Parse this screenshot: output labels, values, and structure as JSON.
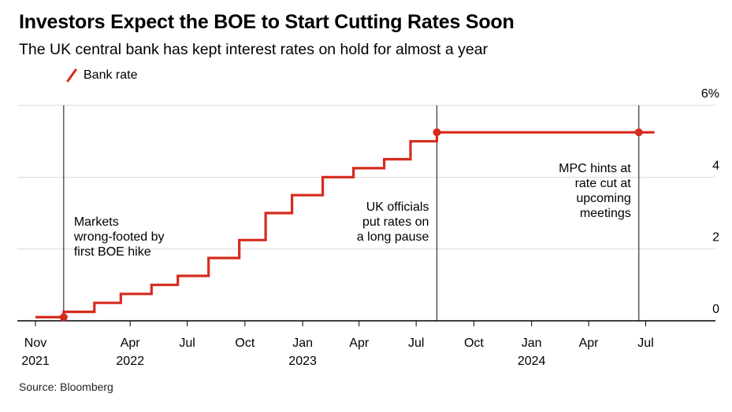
{
  "header": {
    "title": "Investors Expect the BOE to Start Cutting Rates Soon",
    "subtitle": "The UK central bank has kept interest rates on hold for almost a year"
  },
  "source": "Source: Bloomberg",
  "colors": {
    "series": "#d62b1f",
    "grid": "#d9d9d9",
    "axis": "#000000",
    "annotation_line": "#333333"
  },
  "chart_data": {
    "type": "line",
    "step": true,
    "x_unit": "date",
    "ylim": [
      0,
      6
    ],
    "y_ticks": [
      {
        "value": 0,
        "label": "0"
      },
      {
        "value": 2,
        "label": "2"
      },
      {
        "value": 4,
        "label": "4"
      },
      {
        "value": 6,
        "label": "6%"
      }
    ],
    "y_axis_position": "right",
    "xlim": [
      "2021-11-01",
      "2024-09-15"
    ],
    "x_ticks": [
      {
        "date": "2021-11-01",
        "label": "Nov",
        "year": "2021"
      },
      {
        "date": "2022-04-01",
        "label": "Apr",
        "year": "2022"
      },
      {
        "date": "2022-07-01",
        "label": "Jul",
        "year": ""
      },
      {
        "date": "2022-10-01",
        "label": "Oct",
        "year": ""
      },
      {
        "date": "2023-01-01",
        "label": "Jan",
        "year": "2023"
      },
      {
        "date": "2023-04-01",
        "label": "Apr",
        "year": ""
      },
      {
        "date": "2023-07-01",
        "label": "Jul",
        "year": ""
      },
      {
        "date": "2023-10-01",
        "label": "Oct",
        "year": ""
      },
      {
        "date": "2024-01-01",
        "label": "Jan",
        "year": "2024"
      },
      {
        "date": "2024-04-01",
        "label": "Apr",
        "year": ""
      },
      {
        "date": "2024-07-01",
        "label": "Jul",
        "year": ""
      }
    ],
    "grid": true,
    "legend": [
      {
        "name": "Bank rate",
        "color": "#d62b1f",
        "placement": "top-left"
      }
    ],
    "series": [
      {
        "name": "Bank rate",
        "color": "#d62b1f",
        "points": [
          {
            "date": "2021-11-01",
            "value": 0.1
          },
          {
            "date": "2021-12-16",
            "value": 0.25
          },
          {
            "date": "2022-02-03",
            "value": 0.5
          },
          {
            "date": "2022-03-17",
            "value": 0.75
          },
          {
            "date": "2022-05-05",
            "value": 1.0
          },
          {
            "date": "2022-06-16",
            "value": 1.25
          },
          {
            "date": "2022-08-04",
            "value": 1.75
          },
          {
            "date": "2022-09-22",
            "value": 2.25
          },
          {
            "date": "2022-11-03",
            "value": 3.0
          },
          {
            "date": "2022-12-15",
            "value": 3.5
          },
          {
            "date": "2023-02-02",
            "value": 4.0
          },
          {
            "date": "2023-03-23",
            "value": 4.25
          },
          {
            "date": "2023-05-11",
            "value": 4.5
          },
          {
            "date": "2023-06-22",
            "value": 5.0
          },
          {
            "date": "2023-08-03",
            "value": 5.25
          },
          {
            "date": "2024-07-15",
            "value": 5.25
          }
        ]
      }
    ],
    "markers": [
      {
        "date": "2021-12-16",
        "value": 0.1
      },
      {
        "date": "2023-08-03",
        "value": 5.25
      },
      {
        "date": "2024-06-20",
        "value": 5.25
      }
    ],
    "annotations": [
      {
        "date": "2021-12-16",
        "anchor": "start",
        "lines": [
          "Markets",
          "wrong-footed by",
          "first BOE hike"
        ]
      },
      {
        "date": "2023-08-03",
        "anchor": "end",
        "lines": [
          "UK officials",
          "put rates on",
          "a long pause"
        ]
      },
      {
        "date": "2024-06-20",
        "anchor": "end",
        "lines": [
          "MPC hints at",
          "rate cut at",
          "upcoming",
          "meetings"
        ]
      }
    ]
  }
}
